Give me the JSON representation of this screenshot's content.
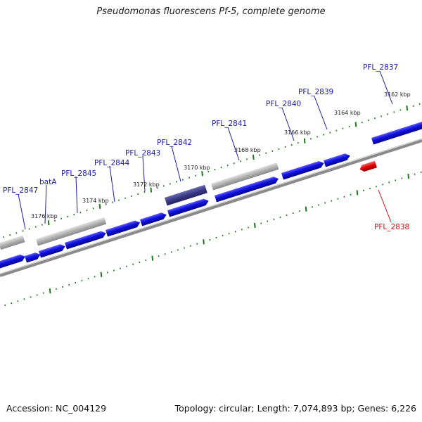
{
  "title": "Pseudomonas fluorescens Pf-5, complete genome",
  "footer": {
    "accession": "Accession: NC_004129",
    "stats": "Topology: circular; Length: 7,074,893 bp; Genes: 6,226"
  },
  "scale_labels": [
    "3176 kbp",
    "3174 kbp",
    "3172 kbp",
    "3170 kbp",
    "3168 kbp",
    "3166 kbp",
    "3164 kbp",
    "3162 kbp"
  ],
  "gene_labels": [
    "PFL_2847",
    "batA",
    "PFL_2845",
    "PFL_2844",
    "PFL_2843",
    "PFL_2842",
    "PFL_2841",
    "PFL_2840",
    "PFL_2839",
    "PFL_2837",
    "PFL_2838"
  ],
  "colors": {
    "cds": "#1010e0",
    "rna": "#a8a8a8",
    "highlight": "#3a3a88",
    "reverse": "#dd0000",
    "backbone": "#808080",
    "ticks": "#1a7a1a"
  }
}
